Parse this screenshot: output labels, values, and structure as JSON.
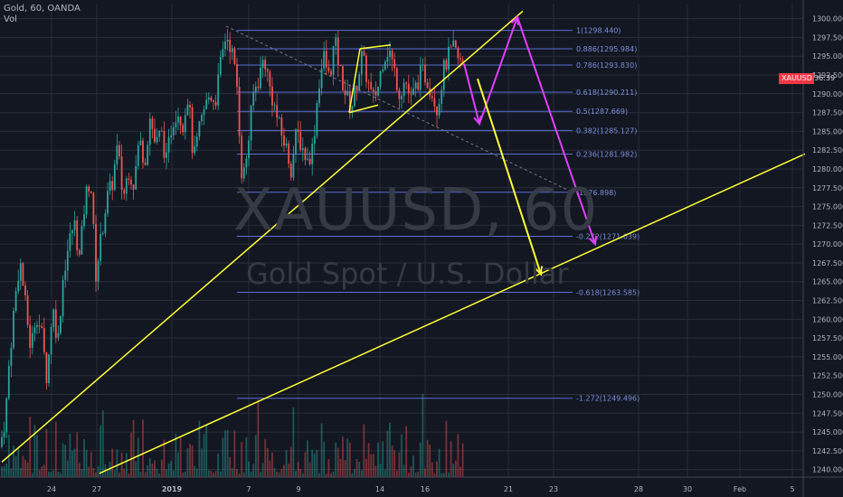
{
  "header": {
    "title": "Gold, 60, OANDA",
    "vol_label": "Vol"
  },
  "watermark": {
    "symbol": "XAUUSD, 60",
    "name": "Gold Spot / U.S. Dollar"
  },
  "price_badge": {
    "symbol": "XAUUSD",
    "time": "36:39",
    "color": "#f23645"
  },
  "colors": {
    "up": "#26a69a",
    "down": "#ef5350",
    "bg": "#131722",
    "grid": "#2a2e39",
    "axis_text": "#b2b5be",
    "trend": "#ffff33",
    "magenta": "#e040fb",
    "fib": "#5b6dd1"
  },
  "chart_data": {
    "type": "candlestick",
    "symbol": "XAUUSD",
    "interval": "60",
    "source": "OANDA",
    "x_ticks": [
      "24",
      "27",
      "2019",
      "7",
      "9",
      "14",
      "16",
      "21",
      "23",
      "28",
      "30",
      "Feb",
      "5"
    ],
    "y_ticks": [
      1300.0,
      1297.5,
      1295.0,
      1292.5,
      1290.0,
      1287.5,
      1285.0,
      1282.5,
      1280.0,
      1277.5,
      1275.0,
      1272.5,
      1270.0,
      1267.5,
      1265.0,
      1262.5,
      1260.0,
      1257.5,
      1255.0,
      1252.5,
      1250.0,
      1247.5,
      1245.0,
      1242.5,
      1240.0
    ],
    "ylim": [
      1239.0,
      1302.0
    ],
    "price_path": [
      [
        0,
        1243
      ],
      [
        6,
        1247
      ],
      [
        10,
        1254
      ],
      [
        16,
        1262
      ],
      [
        22,
        1268
      ],
      [
        28,
        1262
      ],
      [
        34,
        1256
      ],
      [
        40,
        1261
      ],
      [
        46,
        1258
      ],
      [
        52,
        1252
      ],
      [
        58,
        1262
      ],
      [
        64,
        1257
      ],
      [
        70,
        1266
      ],
      [
        76,
        1270
      ],
      [
        82,
        1273
      ],
      [
        88,
        1268
      ],
      [
        94,
        1276
      ],
      [
        100,
        1279
      ],
      [
        106,
        1266
      ],
      [
        112,
        1271
      ],
      [
        118,
        1276
      ],
      [
        124,
        1278
      ],
      [
        130,
        1283
      ],
      [
        136,
        1276
      ],
      [
        142,
        1280
      ],
      [
        148,
        1278
      ],
      [
        154,
        1284
      ],
      [
        160,
        1281
      ],
      [
        166,
        1287
      ],
      [
        172,
        1283
      ],
      [
        178,
        1285
      ],
      [
        184,
        1281
      ],
      [
        190,
        1286
      ],
      [
        196,
        1288
      ],
      [
        202,
        1286
      ],
      [
        208,
        1290
      ],
      [
        214,
        1281
      ],
      [
        220,
        1285
      ],
      [
        226,
        1288
      ],
      [
        232,
        1290
      ],
      [
        238,
        1289
      ],
      [
        244,
        1294
      ],
      [
        250,
        1298
      ],
      [
        256,
        1296
      ],
      [
        262,
        1291
      ],
      [
        268,
        1278
      ],
      [
        274,
        1283
      ],
      [
        280,
        1290
      ],
      [
        286,
        1292
      ],
      [
        292,
        1295
      ],
      [
        298,
        1291
      ],
      [
        304,
        1288
      ],
      [
        310,
        1285
      ],
      [
        316,
        1283
      ],
      [
        322,
        1280
      ],
      [
        328,
        1285
      ],
      [
        334,
        1283
      ],
      [
        340,
        1281
      ],
      [
        346,
        1283
      ],
      [
        352,
        1291
      ],
      [
        358,
        1295
      ],
      [
        364,
        1292
      ],
      [
        370,
        1297
      ],
      [
        376,
        1293
      ],
      [
        382,
        1290
      ],
      [
        388,
        1288
      ],
      [
        394,
        1291
      ],
      [
        400,
        1295
      ],
      [
        406,
        1292
      ],
      [
        412,
        1289
      ],
      [
        418,
        1291
      ],
      [
        424,
        1295
      ],
      [
        430,
        1296
      ],
      [
        436,
        1293
      ],
      [
        442,
        1290
      ],
      [
        448,
        1292
      ],
      [
        454,
        1289
      ],
      [
        460,
        1291
      ],
      [
        466,
        1293
      ],
      [
        472,
        1292
      ],
      [
        478,
        1290
      ],
      [
        484,
        1288
      ],
      [
        490,
        1293
      ],
      [
        496,
        1295
      ],
      [
        502,
        1296
      ],
      [
        508,
        1294
      ],
      [
        513,
        1294
      ]
    ],
    "volume_ymax": 120,
    "fib_levels": [
      {
        "ratio": "1",
        "price": 1298.44,
        "label": "1(1298.440)"
      },
      {
        "ratio": "0.886",
        "price": 1295.984,
        "label": "0.886(1295.984)"
      },
      {
        "ratio": "0.786",
        "price": 1293.83,
        "label": "0.786(1293.830)"
      },
      {
        "ratio": "0.618",
        "price": 1290.211,
        "label": "0.618(1290.211)"
      },
      {
        "ratio": "0.5",
        "price": 1287.669,
        "label": "0.5(1287.669)"
      },
      {
        "ratio": "0.382",
        "price": 1285.127,
        "label": "0.382(1285.127)"
      },
      {
        "ratio": "0.236",
        "price": 1281.982,
        "label": "0.236(1281.982)"
      },
      {
        "ratio": "0",
        "price": 1276.898,
        "label": "(1276.898)"
      },
      {
        "ratio": "-0.272",
        "price": 1271.039,
        "label": "-0.272(1271.039)"
      },
      {
        "ratio": "-0.618",
        "price": 1263.585,
        "label": "-0.618(1263.585)"
      },
      {
        "ratio": "-1.272",
        "price": 1249.496,
        "label": "-1.272(1249.496)"
      }
    ],
    "annotations": {
      "trend_lines": [
        {
          "name": "upper-trendline",
          "points": [
            [
              2,
              1241
            ],
            [
              578,
              1301
            ]
          ]
        },
        {
          "name": "lower-trendline",
          "points": [
            [
              110,
              1239.5
            ],
            [
              890,
              1282
            ]
          ]
        },
        {
          "name": "flag-upper",
          "points": [
            [
              398,
              1296
            ],
            [
              432,
              1296.5
            ]
          ]
        },
        {
          "name": "flag-lower",
          "points": [
            [
              386,
              1287.5
            ],
            [
              418,
              1288.5
            ]
          ]
        },
        {
          "name": "flag-left",
          "points": [
            [
              386,
              1287.5
            ],
            [
              398,
              1296
            ]
          ]
        }
      ],
      "dashed_line": {
        "points": [
          [
            250,
            1299
          ],
          [
            633,
            1276.898
          ]
        ]
      },
      "magenta_path": [
        [
          513,
          1294
        ],
        [
          530,
          1286
        ],
        [
          572,
          1300.2
        ],
        [
          658,
          1270
        ]
      ],
      "yellow_arrow": [
        [
          528,
          1292
        ],
        [
          598,
          1266
        ]
      ]
    }
  }
}
